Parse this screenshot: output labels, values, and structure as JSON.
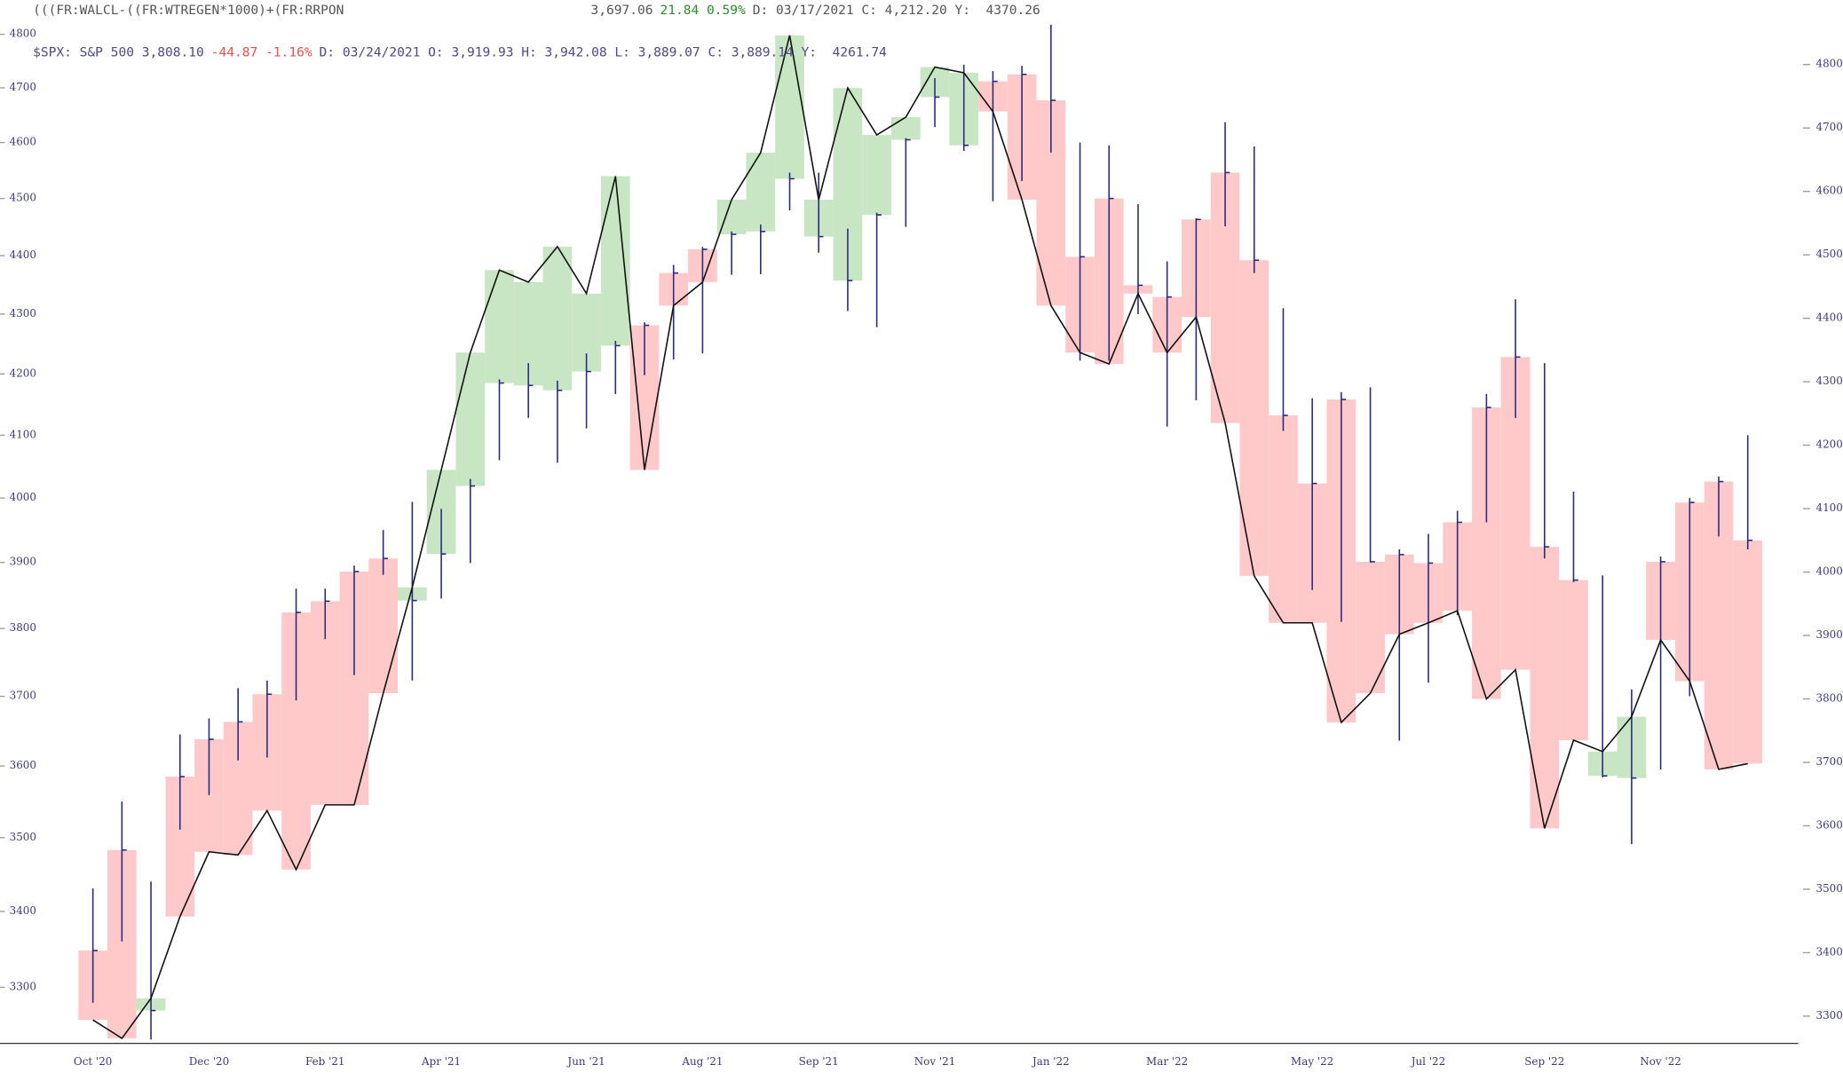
{
  "chart_data": {
    "type": "bar-line",
    "header1": [
      {
        "text": "(((FR:WALCL-((FR:WTREGEN*1000)+(FR:RRPON",
        "color": "#555555"
      },
      {
        "text": "3,697.06",
        "color": "#555555"
      },
      {
        "text": "21.84 0.59%",
        "color": "#2e8b2e"
      },
      {
        "text": "D: 03/17/2021 C: 4,212.20 Y:  4370.26",
        "color": "#555555"
      }
    ],
    "header2": [
      {
        "text": "$SPX: S&P 500 3,808.10",
        "color": "#4a4a8a"
      },
      {
        "text": "-44.87 -1.16%",
        "color": "#e0534a"
      },
      {
        "text": "D: 03/24/2021 O: 3,919.93 H: 3,942.08 L: 3,889.07 C: 3,889.14 Y:  4261.74",
        "color": "#4a4a8a"
      }
    ],
    "categories": [
      "Oct '20",
      null,
      null,
      null,
      "Dec '20",
      null,
      null,
      null,
      "Feb '21",
      null,
      null,
      null,
      "Apr '21",
      null,
      null,
      null,
      null,
      "Jun '21",
      null,
      null,
      null,
      "Aug '21",
      null,
      null,
      null,
      "Sep '21",
      null,
      null,
      null,
      "Nov '21",
      null,
      null,
      null,
      "Jan '22",
      null,
      null,
      null,
      "Mar '22",
      null,
      null,
      null,
      null,
      "May '22",
      null,
      null,
      null,
      "Jul '22",
      null,
      null,
      null,
      "Sep '22",
      null,
      null,
      null,
      "Nov '22",
      null,
      null,
      null
    ],
    "series": [
      {
        "name": "$SPX",
        "color": "#2a2a80",
        "values": [
          3348,
          3483,
          3270,
          3585,
          3638,
          3663,
          3703,
          3824,
          3841,
          3886,
          3906,
          3842,
          3913,
          4019,
          4185,
          4181,
          4173,
          4204,
          4247,
          4281,
          4370,
          4411,
          4437,
          4442,
          4535,
          4433,
          4357,
          4471,
          4605,
          4683,
          4595,
          4712,
          4725,
          4677,
          4398,
          4500,
          4349,
          4329,
          4463,
          4546,
          4392,
          4132,
          4023,
          4158,
          3901,
          3912,
          3899,
          3962,
          4145,
          4228,
          3924,
          3873,
          3586,
          3583,
          3901,
          3993,
          4026,
          3934
        ],
        "high": [
          3431,
          3550,
          3440,
          3645,
          3668,
          3712,
          3723,
          3860,
          3860,
          3895,
          3950,
          3994,
          3983,
          4030,
          4191,
          4218,
          4189,
          4234,
          4255,
          4286,
          4384,
          4415,
          4442,
          4454,
          4546,
          4546,
          4447,
          4475,
          4608,
          4718,
          4743,
          4731,
          4741,
          4818,
          4600,
          4595,
          4490,
          4390,
          4465,
          4637,
          4593,
          4310,
          4160,
          4170,
          4178,
          3920,
          3944,
          3980,
          4167,
          4325,
          4218,
          4010,
          3880,
          3710,
          3909,
          4000,
          4034,
          4100
        ],
        "low": [
          3280,
          3360,
          3233,
          3511,
          3559,
          3608,
          3612,
          3694,
          3784,
          3731,
          3881,
          3723,
          3845,
          3899,
          4060,
          4128,
          4056,
          4111,
          4167,
          4198,
          4224,
          4234,
          4367,
          4368,
          4479,
          4405,
          4305,
          4278,
          4450,
          4628,
          4585,
          4495,
          4531,
          4582,
          4222,
          4222,
          4300,
          4114,
          4157,
          4451,
          4370,
          4107,
          3858,
          3810,
          3900,
          3636,
          3720,
          3820,
          3962,
          4128,
          3906,
          3870,
          3584,
          3491,
          3595,
          3700,
          3940,
          3920
        ]
      },
      {
        "name": "(((FR:WALCL-((FR:WTREGEN*1000)+(FR:RRPON",
        "color": "#111111",
        "axis": "y2",
        "values": [
          3294,
          3265,
          3328,
          3457,
          3559,
          3554,
          3624,
          3531,
          3633,
          3633,
          3809,
          3976,
          4161,
          4346,
          4476,
          4457,
          4513,
          4439,
          4624,
          4161,
          4420,
          4457,
          4587,
          4661,
          4846,
          4587,
          4763,
          4689,
          4717,
          4796,
          4787,
          4726,
          4587,
          4420,
          4346,
          4328,
          4439,
          4346,
          4402,
          4235,
          3994,
          3920,
          3920,
          3763,
          3809,
          3902,
          3920,
          3939,
          3800,
          3846,
          3596,
          3735,
          3717,
          3772,
          3893,
          3828,
          3689,
          3698
        ]
      }
    ],
    "above_color": "#c9e6c4",
    "below_color": "#ffc9c9",
    "ylim": [
      3228,
      4816
    ],
    "ylog": true,
    "yticks": [
      3300,
      3400,
      3500,
      3600,
      3700,
      3800,
      3900,
      4000,
      4100,
      4200,
      4300,
      4400,
      4500,
      4600,
      4700,
      4800
    ],
    "y2lim": [
      3257,
      4861
    ],
    "y2ticks": [
      3300,
      3400,
      3500,
      3600,
      3700,
      3800,
      3900,
      4000,
      4100,
      4200,
      4300,
      4400,
      4500,
      4600,
      4700,
      4800
    ]
  }
}
